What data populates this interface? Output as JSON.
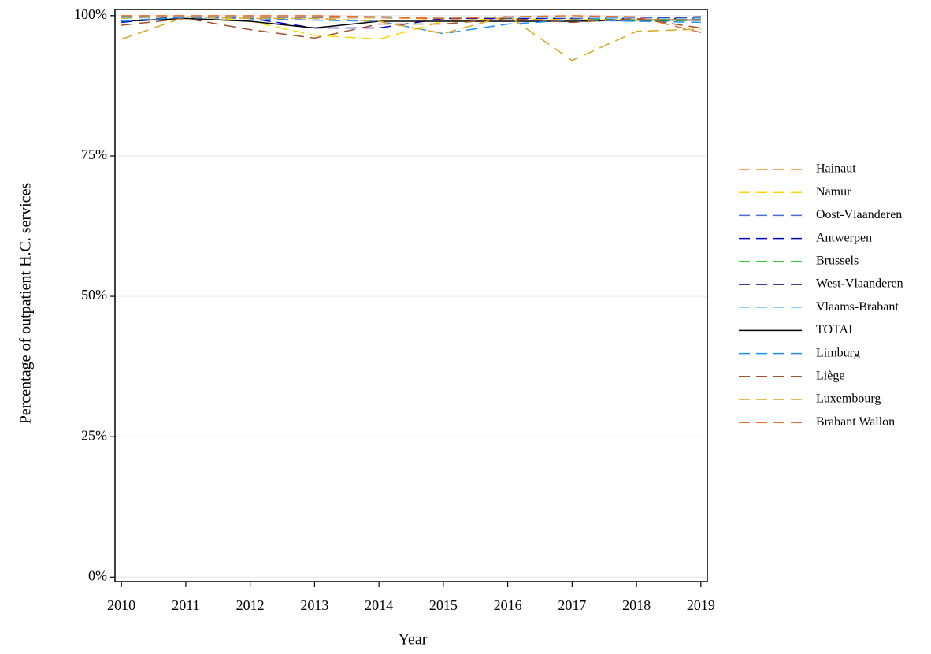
{
  "chart_data": {
    "type": "line",
    "x_label": "Year",
    "y_label": "Percentage of outpatient H.C. services",
    "x": [
      2010,
      2011,
      2012,
      2013,
      2014,
      2015,
      2016,
      2017,
      2018,
      2019
    ],
    "xlim": [
      2009.9,
      2019.1
    ],
    "xticks": [
      2010,
      2011,
      2012,
      2013,
      2014,
      2015,
      2016,
      2017,
      2018,
      2019
    ],
    "ylim": [
      -0.8,
      101.1
    ],
    "yticks": [
      {
        "value": 0,
        "label": "0%"
      },
      {
        "value": 25,
        "label": "25%"
      },
      {
        "value": 50,
        "label": "50%"
      },
      {
        "value": 75,
        "label": "75%"
      },
      {
        "value": 100,
        "label": "100%"
      }
    ],
    "grid": true,
    "legend": "right",
    "series": [
      {
        "name": "Hainaut",
        "color": "#ff8c1a",
        "linestyle": "dashed",
        "values": [
          99.6,
          99.8,
          99.7,
          99.6,
          99.6,
          99.4,
          99.6,
          99.5,
          99.5,
          99.4
        ]
      },
      {
        "name": "Namur",
        "color": "#ffd700",
        "linestyle": "dashed",
        "values": [
          99.5,
          100,
          99,
          96.5,
          95.8,
          99,
          99.5,
          99.3,
          99.4,
          99.2
        ]
      },
      {
        "name": "Oost-Vlaanderen",
        "color": "#4a6fd0",
        "linestyle": "dashed",
        "values": [
          99.6,
          99.9,
          99.8,
          99.7,
          99.8,
          99.6,
          99.7,
          99.6,
          99.6,
          99.6
        ]
      },
      {
        "name": "Antwerpen",
        "color": "#0000cd",
        "linestyle": "dashed",
        "values": [
          98.8,
          99.8,
          99.5,
          97.8,
          97.8,
          99.5,
          99.5,
          99.5,
          99.5,
          99.5
        ]
      },
      {
        "name": "Brussels",
        "color": "#32cd32",
        "linestyle": "dashed",
        "values": [
          99.8,
          99.9,
          99.8,
          99.8,
          99.7,
          99.6,
          99.7,
          99.6,
          99,
          99.2
        ]
      },
      {
        "name": "West-Vlaanderen",
        "color": "#000080",
        "linestyle": "dashed",
        "values": [
          99,
          99.8,
          99.8,
          99.8,
          99.8,
          99.5,
          99.8,
          99.5,
          99.5,
          99.8
        ]
      },
      {
        "name": "Vlaams-Brabant",
        "color": "#87cefa",
        "linestyle": "dashed",
        "values": [
          99.7,
          99.9,
          99.8,
          99.8,
          99.7,
          99.6,
          99.7,
          99.6,
          99.5,
          99.5
        ]
      },
      {
        "name": "TOTAL",
        "color": "#000000",
        "linestyle": "solid",
        "values": [
          99,
          99.5,
          99,
          97.8,
          99,
          99,
          99,
          99,
          99.2,
          99.2
        ]
      },
      {
        "name": "Limburg",
        "color": "#1e90ff",
        "linestyle": "dashed",
        "values": [
          99,
          99.7,
          99.5,
          99.2,
          99,
          96.8,
          98.5,
          99.2,
          99,
          98.8
        ]
      },
      {
        "name": "Liège",
        "color": "#a0522d",
        "linestyle": "dashed",
        "values": [
          98.3,
          99.5,
          97.5,
          96,
          98.5,
          98.5,
          99.5,
          98.8,
          99.5,
          97.8
        ]
      },
      {
        "name": "Luxembourg",
        "color": "#daa520",
        "linestyle": "dashed",
        "values": [
          95.8,
          99.8,
          99.5,
          99.5,
          99,
          96.8,
          100,
          92,
          97.2,
          97.6
        ]
      },
      {
        "name": "Brabant Wallon",
        "color": "#f06a2a",
        "linestyle": "dashed",
        "values": [
          100,
          100,
          100,
          100,
          99.8,
          99.5,
          99.8,
          100,
          99.8,
          97
        ]
      }
    ]
  }
}
